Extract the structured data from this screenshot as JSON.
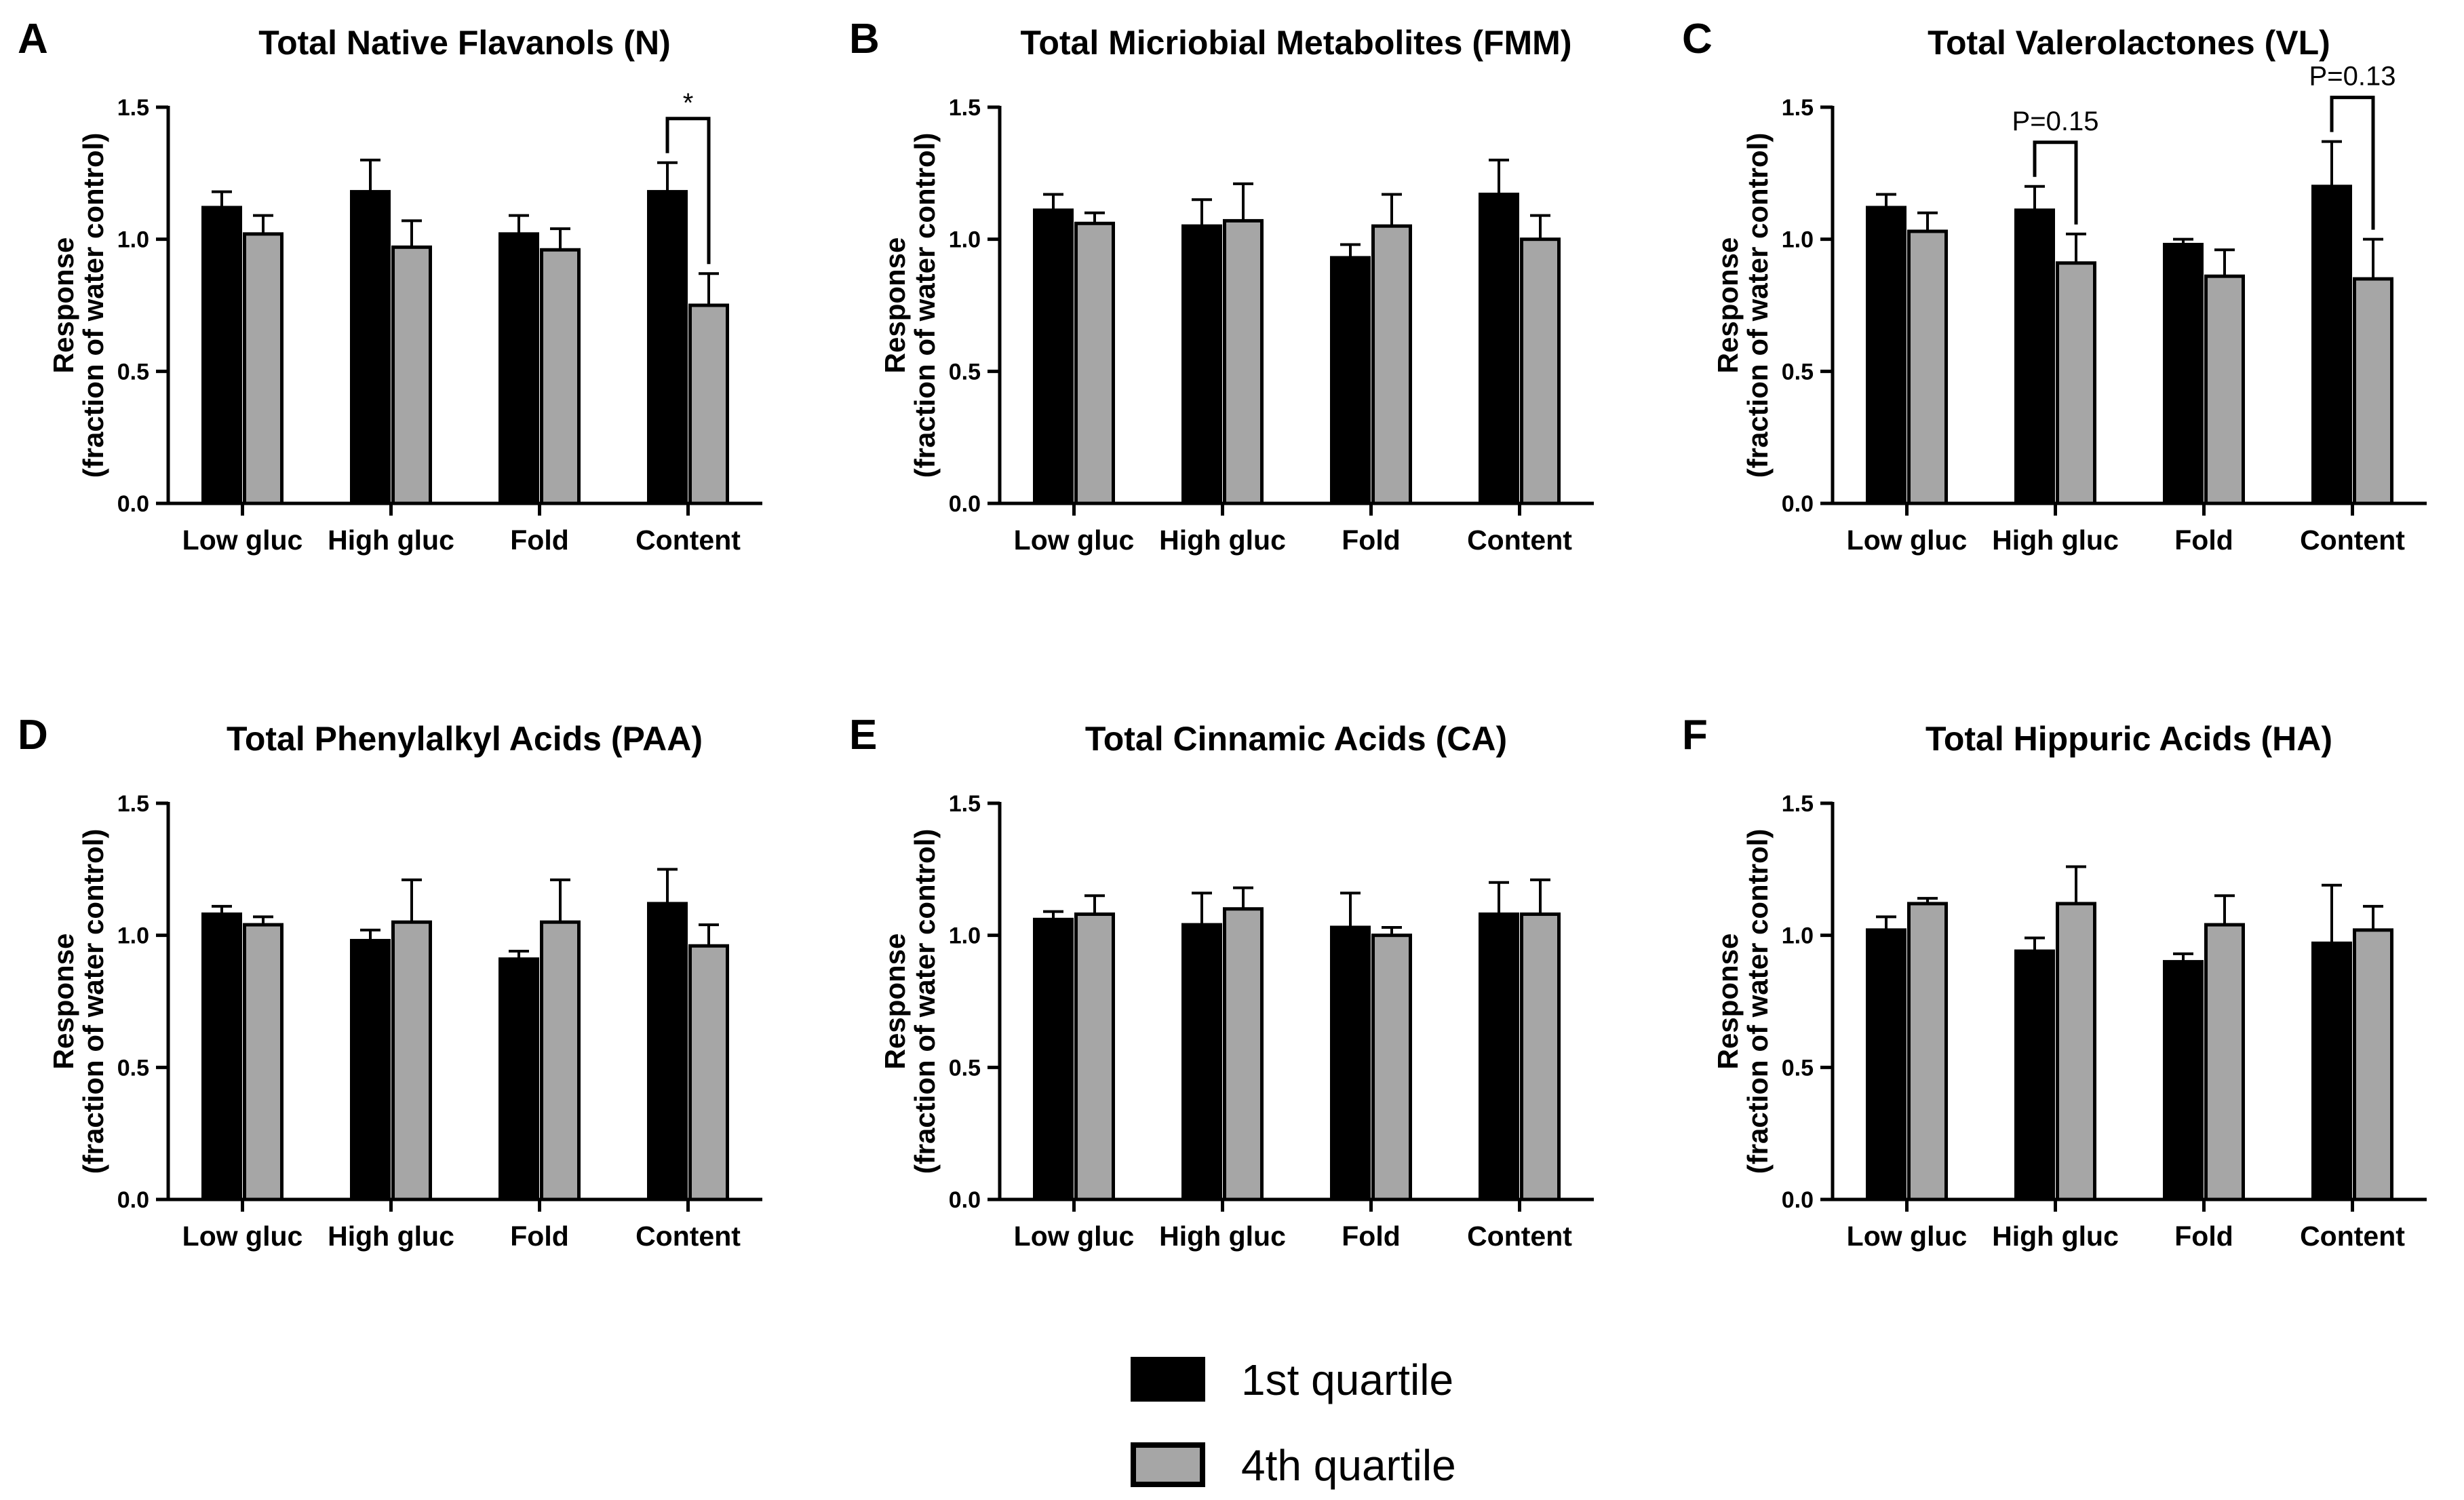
{
  "chart_data": [
    {
      "panel": "A",
      "type": "bar",
      "title": "Total Native Flavanols (N)",
      "ylabel": "Response (fraction of water control)",
      "xlabel": "",
      "categories": [
        "Low gluc",
        "High gluc",
        "Fold",
        "Content"
      ],
      "ylim": [
        0,
        1.5
      ],
      "yticks": [
        "0.0",
        "0.5",
        "1.0",
        "1.5"
      ],
      "series": [
        {
          "name": "1st quartile",
          "color": "#000000",
          "values": [
            1.12,
            1.18,
            1.02,
            1.18
          ],
          "errors": [
            0.06,
            0.12,
            0.07,
            0.11
          ]
        },
        {
          "name": "4th quartile",
          "color": "#a6a6a6",
          "values": [
            1.02,
            0.97,
            0.96,
            0.75
          ],
          "errors": [
            0.07,
            0.1,
            0.08,
            0.12
          ]
        }
      ],
      "annotations": [
        {
          "category_index": 3,
          "label": "*"
        }
      ]
    },
    {
      "panel": "B",
      "type": "bar",
      "title": "Total Micriobial Metabolites (FMM)",
      "ylabel": "Response (fraction of water control)",
      "xlabel": "",
      "categories": [
        "Low gluc",
        "High gluc",
        "Fold",
        "Content"
      ],
      "ylim": [
        0,
        1.5
      ],
      "yticks": [
        "0.0",
        "0.5",
        "1.0",
        "1.5"
      ],
      "series": [
        {
          "name": "1st quartile",
          "color": "#000000",
          "values": [
            1.11,
            1.05,
            0.93,
            1.17
          ],
          "errors": [
            0.06,
            0.1,
            0.05,
            0.13
          ]
        },
        {
          "name": "4th quartile",
          "color": "#a6a6a6",
          "values": [
            1.06,
            1.07,
            1.05,
            1.0
          ],
          "errors": [
            0.04,
            0.14,
            0.12,
            0.09
          ]
        }
      ],
      "annotations": []
    },
    {
      "panel": "C",
      "type": "bar",
      "title": "Total Valerolactones (VL)",
      "ylabel": "Response (fraction of water control)",
      "xlabel": "",
      "categories": [
        "Low gluc",
        "High gluc",
        "Fold",
        "Content"
      ],
      "ylim": [
        0,
        1.5
      ],
      "yticks": [
        "0.0",
        "0.5",
        "1.0",
        "1.5"
      ],
      "series": [
        {
          "name": "1st quartile",
          "color": "#000000",
          "values": [
            1.12,
            1.11,
            0.98,
            1.2
          ],
          "errors": [
            0.05,
            0.09,
            0.02,
            0.17
          ]
        },
        {
          "name": "4th quartile",
          "color": "#a6a6a6",
          "values": [
            1.03,
            0.91,
            0.86,
            0.85
          ],
          "errors": [
            0.07,
            0.11,
            0.1,
            0.15
          ]
        }
      ],
      "annotations": [
        {
          "category_index": 1,
          "label": "P=0.15"
        },
        {
          "category_index": 3,
          "label": "P=0.13"
        }
      ]
    },
    {
      "panel": "D",
      "type": "bar",
      "title": "Total Phenylalkyl Acids (PAA)",
      "ylabel": "Response (fraction of water control)",
      "xlabel": "",
      "categories": [
        "Low gluc",
        "High gluc",
        "Fold",
        "Content"
      ],
      "ylim": [
        0,
        1.5
      ],
      "yticks": [
        "0.0",
        "0.5",
        "1.0",
        "1.5"
      ],
      "series": [
        {
          "name": "1st quartile",
          "color": "#000000",
          "values": [
            1.08,
            0.98,
            0.91,
            1.12
          ],
          "errors": [
            0.03,
            0.04,
            0.03,
            0.13
          ]
        },
        {
          "name": "4th quartile",
          "color": "#a6a6a6",
          "values": [
            1.04,
            1.05,
            1.05,
            0.96
          ],
          "errors": [
            0.03,
            0.16,
            0.16,
            0.08
          ]
        }
      ],
      "annotations": []
    },
    {
      "panel": "E",
      "type": "bar",
      "title": "Total Cinnamic Acids (CA)",
      "ylabel": "Response (fraction of water control)",
      "xlabel": "",
      "categories": [
        "Low gluc",
        "High gluc",
        "Fold",
        "Content"
      ],
      "ylim": [
        0,
        1.5
      ],
      "yticks": [
        "0.0",
        "0.5",
        "1.0",
        "1.5"
      ],
      "series": [
        {
          "name": "1st quartile",
          "color": "#000000",
          "values": [
            1.06,
            1.04,
            1.03,
            1.08
          ],
          "errors": [
            0.03,
            0.12,
            0.13,
            0.12
          ]
        },
        {
          "name": "4th quartile",
          "color": "#a6a6a6",
          "values": [
            1.08,
            1.1,
            1.0,
            1.08
          ],
          "errors": [
            0.07,
            0.08,
            0.03,
            0.13
          ]
        }
      ],
      "annotations": []
    },
    {
      "panel": "F",
      "type": "bar",
      "title": "Total Hippuric Acids (HA)",
      "ylabel": "Response (fraction of water control)",
      "xlabel": "",
      "categories": [
        "Low gluc",
        "High gluc",
        "Fold",
        "Content"
      ],
      "ylim": [
        0,
        1.5
      ],
      "yticks": [
        "0.0",
        "0.5",
        "1.0",
        "1.5"
      ],
      "series": [
        {
          "name": "1st quartile",
          "color": "#000000",
          "values": [
            1.02,
            0.94,
            0.9,
            0.97
          ],
          "errors": [
            0.05,
            0.05,
            0.03,
            0.22
          ]
        },
        {
          "name": "4th quartile",
          "color": "#a6a6a6",
          "values": [
            1.12,
            1.12,
            1.04,
            1.02
          ],
          "errors": [
            0.02,
            0.14,
            0.11,
            0.09
          ]
        }
      ],
      "annotations": []
    }
  ],
  "legend": {
    "position": "bottom-center",
    "items": [
      {
        "label": "1st quartile",
        "color": "#000000"
      },
      {
        "label": "4th quartile",
        "color": "#a6a6a6"
      }
    ]
  }
}
